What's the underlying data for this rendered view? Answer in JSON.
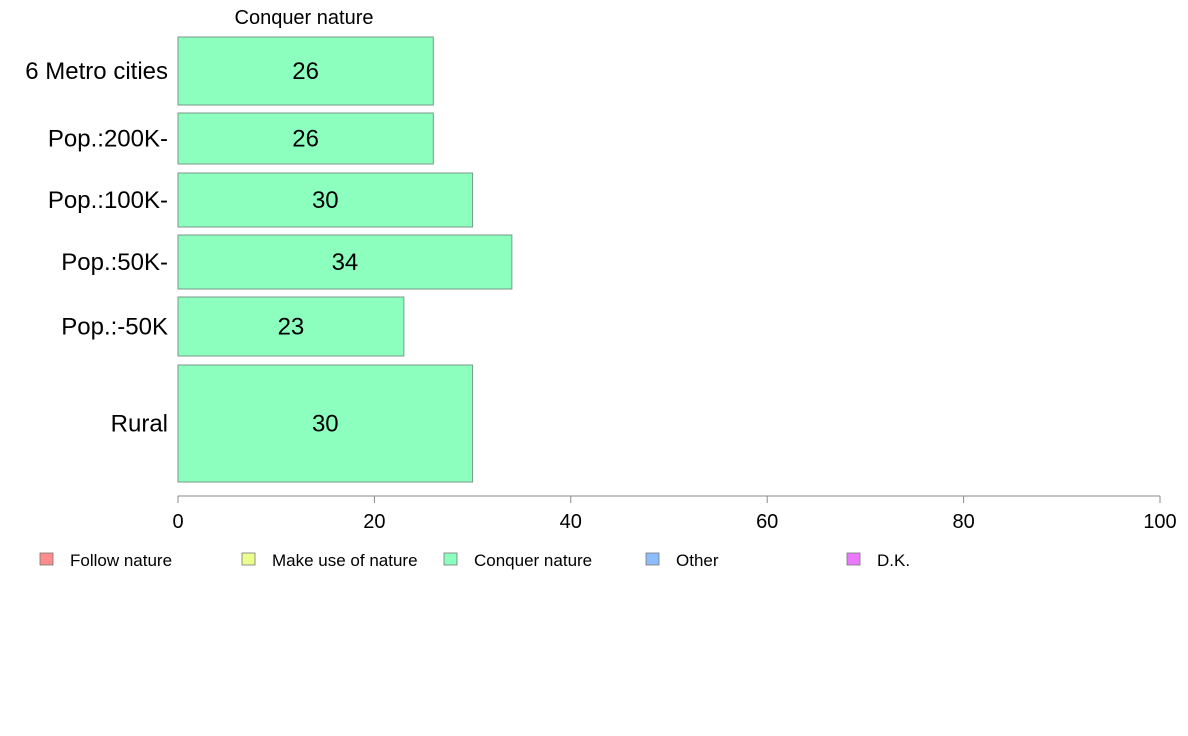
{
  "chart_data": {
    "type": "bar",
    "orientation": "horizontal",
    "title": "Conquer nature",
    "categories": [
      "6 Metro cities",
      "Pop.:200K-",
      "Pop.:100K-",
      "Pop.:50K-",
      "Pop.:-50K",
      "Rural"
    ],
    "values": [
      26,
      26,
      30,
      34,
      23,
      30
    ],
    "value_labels": [
      "26",
      "26",
      "30",
      "34",
      "23",
      "30"
    ],
    "bar_color": "#8cffbe",
    "xlim": [
      0,
      100
    ],
    "xticks": [
      0,
      20,
      40,
      60,
      80,
      100
    ],
    "xtick_labels": [
      "0",
      "20",
      "40",
      "60",
      "80",
      "100"
    ],
    "grid": false,
    "legend_position": "bottom",
    "legend": [
      {
        "label": "Follow nature",
        "color": "#ff8c8c"
      },
      {
        "label": "Make use of nature",
        "color": "#ecff8c"
      },
      {
        "label": "Conquer nature",
        "color": "#8cffbe"
      },
      {
        "label": "Other",
        "color": "#8cbeff"
      },
      {
        "label": "D.K.",
        "color": "#ec78ff"
      }
    ]
  }
}
